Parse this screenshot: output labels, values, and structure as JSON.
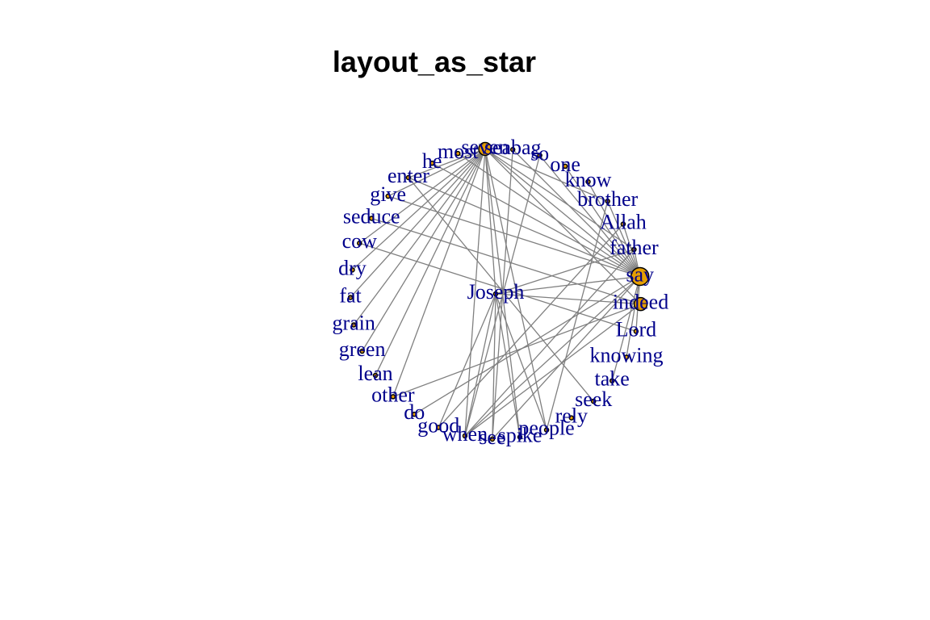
{
  "title": "layout_as_star",
  "center": "Joseph",
  "nodes": [
    "Joseph",
    "say",
    "indeed",
    "Lord",
    "knowing",
    "take",
    "seek",
    "rely",
    "people",
    "spike",
    "see",
    "when",
    "good",
    "do",
    "other",
    "lean",
    "green",
    "grain",
    "fat",
    "dry",
    "cow",
    "seduce",
    "give",
    "enter",
    "he",
    "most",
    "seven",
    "seabag",
    "so",
    "one",
    "know",
    "brother",
    "Allah",
    "father"
  ],
  "highlighted": [
    "say",
    "indeed",
    "seven"
  ],
  "edges": [
    [
      "seven",
      "say"
    ],
    [
      "seven",
      "indeed"
    ],
    [
      "seven",
      "father"
    ],
    [
      "seven",
      "brother"
    ],
    [
      "seven",
      "Joseph"
    ],
    [
      "seven",
      "when"
    ],
    [
      "seven",
      "spike"
    ],
    [
      "seven",
      "people"
    ],
    [
      "seven",
      "other"
    ],
    [
      "seven",
      "lean"
    ],
    [
      "seven",
      "green"
    ],
    [
      "seven",
      "grain"
    ],
    [
      "seven",
      "fat"
    ],
    [
      "seven",
      "dry"
    ],
    [
      "seven",
      "cow"
    ],
    [
      "seven",
      "give"
    ],
    [
      "seven",
      "enter"
    ],
    [
      "he",
      "say"
    ],
    [
      "most",
      "say"
    ],
    [
      "enter",
      "say"
    ],
    [
      "give",
      "say"
    ],
    [
      "seduce",
      "indeed"
    ],
    [
      "cow",
      "Lord"
    ],
    [
      "enter",
      "seek"
    ],
    [
      "Joseph",
      "say"
    ],
    [
      "Joseph",
      "indeed"
    ],
    [
      "Joseph",
      "father"
    ],
    [
      "Joseph",
      "when"
    ],
    [
      "Joseph",
      "good"
    ],
    [
      "Joseph",
      "see"
    ],
    [
      "Joseph",
      "spike"
    ],
    [
      "Joseph",
      "people"
    ],
    [
      "one",
      "say"
    ],
    [
      "know",
      "say"
    ],
    [
      "brother",
      "say"
    ],
    [
      "Allah",
      "say"
    ],
    [
      "father",
      "say"
    ],
    [
      "so",
      "say"
    ],
    [
      "seabag",
      "say"
    ],
    [
      "when",
      "say"
    ],
    [
      "when",
      "father"
    ],
    [
      "when",
      "indeed"
    ],
    [
      "see",
      "say"
    ],
    [
      "good",
      "Allah"
    ],
    [
      "people",
      "brother"
    ],
    [
      "do",
      "say"
    ],
    [
      "other",
      "indeed"
    ],
    [
      "knowing",
      "say"
    ],
    [
      "take",
      "say"
    ],
    [
      "Lord",
      "say"
    ],
    [
      "seabag",
      "see"
    ],
    [
      "so",
      "when"
    ]
  ],
  "colors": {
    "edge": "#808080",
    "label": "#00008b",
    "node": "#e69f00"
  }
}
